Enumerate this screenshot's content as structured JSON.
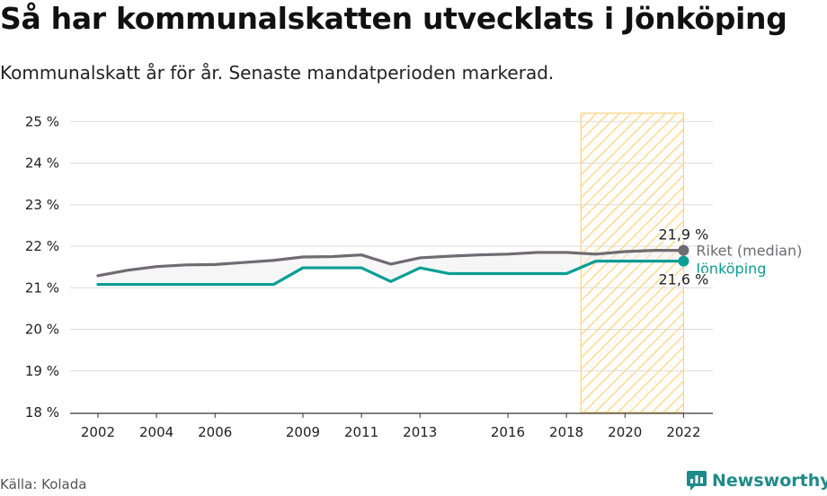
{
  "header": {
    "title": "Så har kommunalskatten utvecklats i Jönköping",
    "subtitle": "Kommunalskatt år för år. Senaste mandatperioden markerad."
  },
  "footer": {
    "source": "Källa: Kolada",
    "brand": "Newsworthy"
  },
  "colors": {
    "riket": "#6e6b72",
    "jonkoping": "#0b9e94",
    "highlight_fill": "#ffd27a",
    "grid": "#dcdcdc"
  },
  "chart_data": {
    "type": "line",
    "x": [
      2002,
      2003,
      2004,
      2005,
      2006,
      2007,
      2008,
      2009,
      2010,
      2011,
      2012,
      2013,
      2014,
      2015,
      2016,
      2017,
      2018,
      2019,
      2020,
      2021,
      2022
    ],
    "x_ticks": [
      2002,
      2004,
      2006,
      2009,
      2011,
      2013,
      2016,
      2018,
      2020,
      2022
    ],
    "y_ticks": [
      18,
      19,
      20,
      21,
      22,
      23,
      24,
      25
    ],
    "y_tick_labels": [
      "18 %",
      "19 %",
      "20 %",
      "21 %",
      "22 %",
      "23 %",
      "24 %",
      "25 %"
    ],
    "ylim": [
      18,
      25.2
    ],
    "xlim": [
      2001.05,
      2023.0
    ],
    "highlight_period": [
      2018.5,
      2022
    ],
    "series": [
      {
        "name": "Riket (median)",
        "color": "#6e6b72",
        "values": [
          21.29,
          21.42,
          21.51,
          21.55,
          21.56,
          21.61,
          21.66,
          21.74,
          21.75,
          21.79,
          21.57,
          21.72,
          21.76,
          21.79,
          21.81,
          21.85,
          21.85,
          21.81,
          21.87,
          21.9,
          21.9
        ],
        "end_label": "21,9 %"
      },
      {
        "name": "Jönköping",
        "color": "#0b9e94",
        "values": [
          21.08,
          21.08,
          21.08,
          21.08,
          21.08,
          21.08,
          21.08,
          21.48,
          21.48,
          21.48,
          21.15,
          21.48,
          21.34,
          21.34,
          21.34,
          21.34,
          21.34,
          21.64,
          21.64,
          21.64,
          21.64
        ],
        "end_label": "21,6 %"
      }
    ]
  }
}
